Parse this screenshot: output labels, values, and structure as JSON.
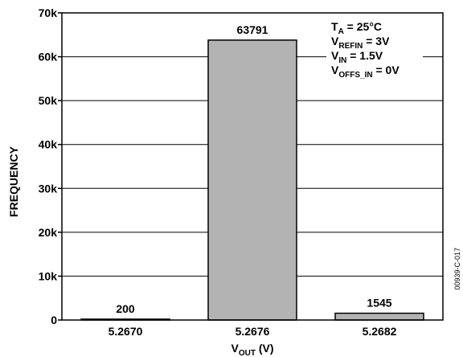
{
  "chart_data": {
    "type": "bar",
    "categories": [
      "5.2670",
      "5.2676",
      "5.2682"
    ],
    "values": [
      200,
      63791,
      1545
    ],
    "data_labels": [
      "200",
      "63791",
      "1545"
    ],
    "ylim": [
      0,
      70000
    ],
    "yticks": [
      0,
      10000,
      20000,
      30000,
      40000,
      50000,
      60000,
      70000
    ],
    "ytick_labels": [
      "0",
      "10k",
      "20k",
      "30k",
      "40k",
      "50k",
      "60k",
      "70k"
    ],
    "ylabel": "FREQUENCY",
    "xlabel": {
      "main": "V",
      "sub": "OUT",
      "unit": " (V)"
    },
    "grid": "horizontal",
    "bar_color": "#b3b3b3",
    "annotations": [
      {
        "main": "T",
        "sub": "A",
        "rest": " = 25°C"
      },
      {
        "main": "V",
        "sub": "REFIN",
        "rest": " = 3V"
      },
      {
        "main": "V",
        "sub": "IN",
        "rest": " = 1.5V"
      },
      {
        "main": "V",
        "sub": "OFFS_IN",
        "rest": " = 0V"
      }
    ],
    "annotation_placement": "top-right",
    "figure_code": "00939-C-017"
  }
}
